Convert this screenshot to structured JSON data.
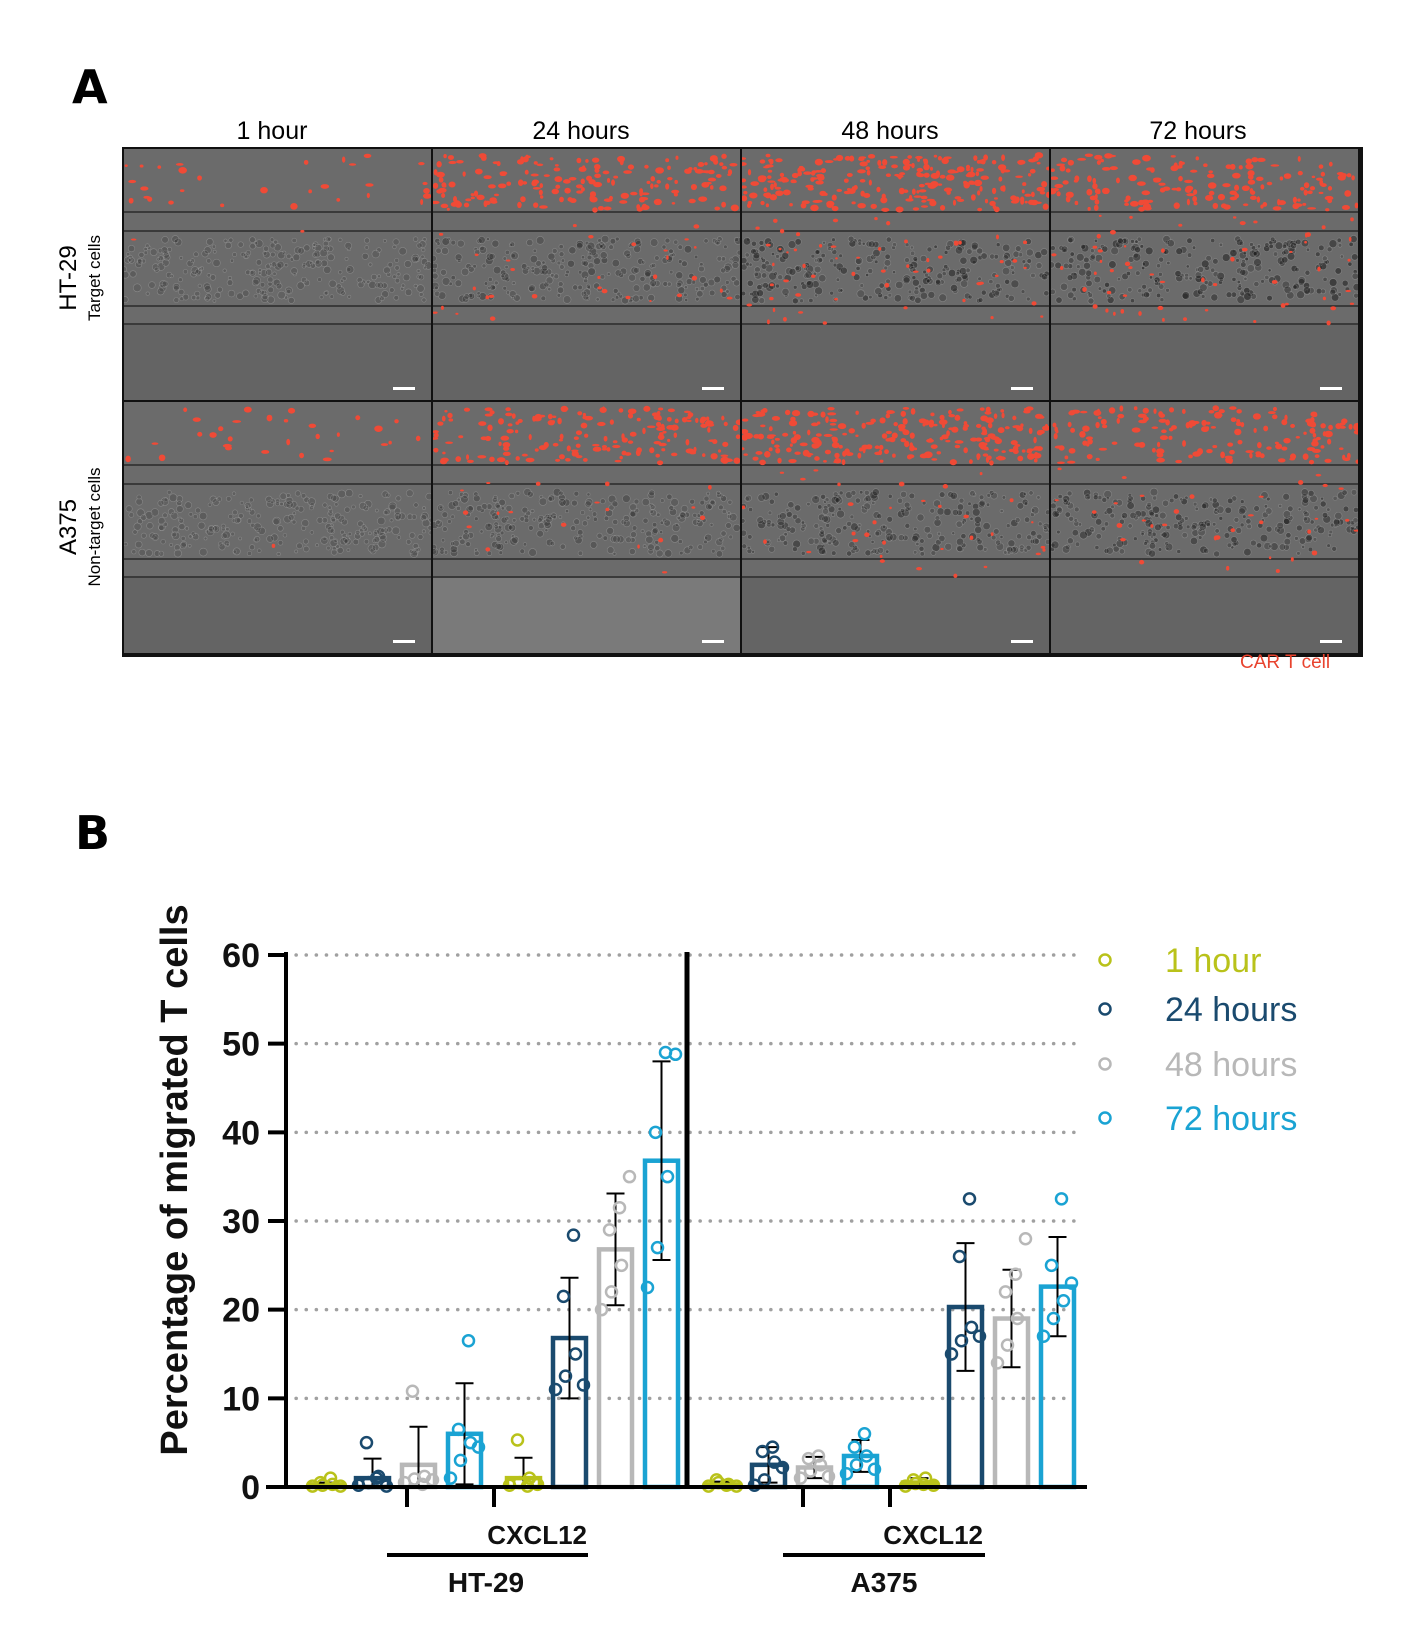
{
  "panel_a": {
    "letter": "A",
    "timepoints": [
      "1 hour",
      "24 hours",
      "48 hours",
      "72 hours"
    ],
    "rows": [
      {
        "cell_line": "HT-29",
        "descriptor": "Target cells"
      },
      {
        "cell_line": "A375",
        "descriptor": "Non-target cells"
      }
    ],
    "legend_label": "CAR T cell",
    "colors": {
      "car_t": "#f04a36",
      "background": "#6b6b6b"
    }
  },
  "panel_b": {
    "letter": "B"
  },
  "chart_data": {
    "type": "bar",
    "ylabel": "Percentage of migrated T cells",
    "xlabel": "",
    "ylim": [
      0,
      60
    ],
    "yticks": [
      0,
      10,
      20,
      30,
      40,
      50,
      60
    ],
    "grid": "horizontal dotted",
    "legend_position": "top-right",
    "groups": [
      {
        "label": "",
        "cell_line": "HT-29"
      },
      {
        "label": "CXCL12",
        "cell_line": "HT-29"
      },
      {
        "label": "",
        "cell_line": "A375"
      },
      {
        "label": "CXCL12",
        "cell_line": "A375"
      }
    ],
    "cell_lines": [
      "HT-29",
      "A375"
    ],
    "series": [
      {
        "name": "1 hour",
        "color": "#b9c21a",
        "values": [
          0.3,
          1.0,
          0.3,
          0.5
        ],
        "errors": [
          0.2,
          2.3,
          0.3,
          0.5
        ],
        "points": [
          [
            0.1,
            0.2,
            0.3,
            0.5,
            1.0,
            0.1
          ],
          [
            0.2,
            0.5,
            1.0,
            5.3,
            0.1,
            0.3
          ],
          [
            0.1,
            0.5,
            0.3,
            0.8,
            0.2,
            0.1
          ],
          [
            0.1,
            0.4,
            1.0,
            0.8,
            0.3,
            0.2
          ]
        ]
      },
      {
        "name": "24 hours",
        "color": "#1a4a6e",
        "values": [
          1.0,
          16.8,
          2.5,
          20.3
        ],
        "errors": [
          2.2,
          6.8,
          2.0,
          7.2
        ],
        "points": [
          [
            0.2,
            0.5,
            1.2,
            5.0,
            1.0,
            0.1
          ],
          [
            11.0,
            12.5,
            15.0,
            21.5,
            28.4,
            11.5
          ],
          [
            0.2,
            0.8,
            2.8,
            4.0,
            4.5,
            2.2
          ],
          [
            15.0,
            16.5,
            18.0,
            26.0,
            32.5,
            17.0
          ]
        ]
      },
      {
        "name": "48 hours",
        "color": "#b8b8b8",
        "values": [
          2.5,
          26.8,
          2.2,
          19.0
        ],
        "errors": [
          4.3,
          6.3,
          1.2,
          5.5
        ],
        "points": [
          [
            0.5,
            0.9,
            1.2,
            10.8,
            0.3,
            0.8
          ],
          [
            20.0,
            22.0,
            25.0,
            29.0,
            31.5,
            35.0
          ],
          [
            1.0,
            1.8,
            2.5,
            3.2,
            3.5,
            1.2
          ],
          [
            14.0,
            16.0,
            19.0,
            22.0,
            24.0,
            28.0
          ]
        ]
      },
      {
        "name": "72 hours",
        "color": "#1aa3d3",
        "values": [
          6.0,
          36.8,
          3.5,
          22.6
        ],
        "errors": [
          5.7,
          11.2,
          1.8,
          5.6
        ],
        "points": [
          [
            1.0,
            3.0,
            5.0,
            6.5,
            16.5,
            4.5
          ],
          [
            22.5,
            27.0,
            35.0,
            40.0,
            49.0,
            48.8
          ],
          [
            1.5,
            2.5,
            3.5,
            4.5,
            6.0,
            2.0
          ],
          [
            17.0,
            19.0,
            21.0,
            25.0,
            32.5,
            23.0
          ]
        ]
      }
    ]
  }
}
